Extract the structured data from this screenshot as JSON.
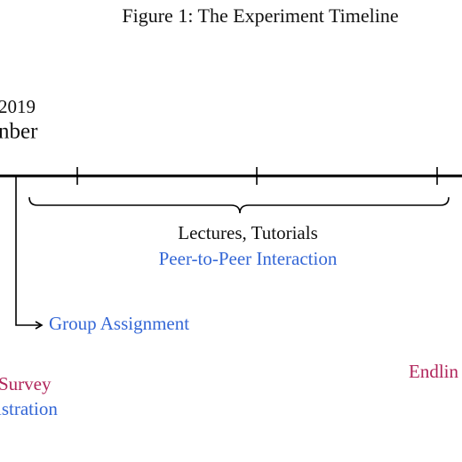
{
  "header": {
    "title": "Figure 1: The Experiment Timeline"
  },
  "timeline": {
    "start_year": "2019",
    "start_month": "nber",
    "phase": {
      "line1": "Lectures, Tutorials",
      "line2": "Peer-to-Peer Interaction"
    },
    "branch": "Group Assignment",
    "bottom_left": {
      "line1": "Survey",
      "line2": "istration"
    },
    "bottom_right": "Endlin"
  }
}
